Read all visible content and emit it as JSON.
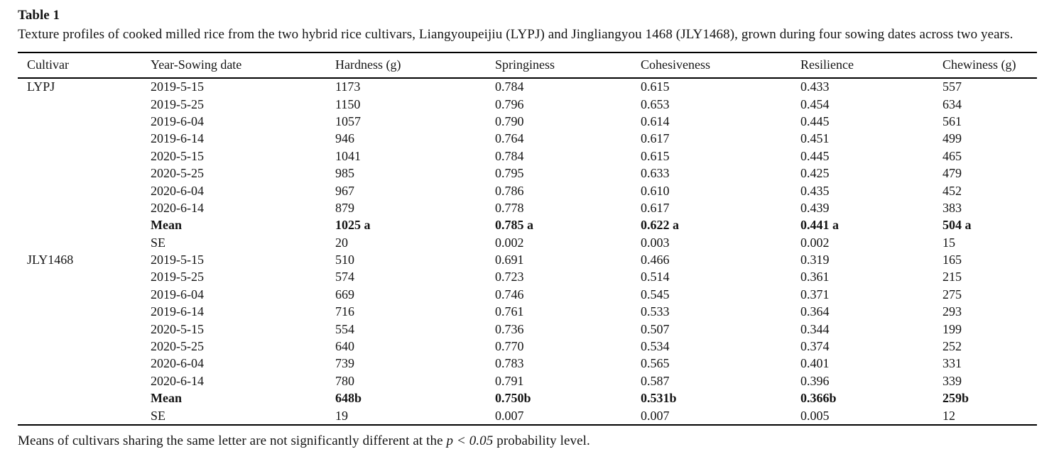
{
  "header": {
    "label": "Table 1",
    "caption": "Texture profiles of cooked milled rice from the two hybrid rice cultivars, Liangyoupeijiu (LYPJ) and Jingliangyou 1468 (JLY1468), grown during four sowing dates across two years."
  },
  "columns": [
    "Cultivar",
    "Year-Sowing date",
    "Hardness (g)",
    "Springiness",
    "Cohesiveness",
    "Resilience",
    "Chewiness (g)"
  ],
  "groups": [
    {
      "cultivar": "LYPJ",
      "rows": [
        [
          "2019-5-15",
          "1173",
          "0.784",
          "0.615",
          "0.433",
          "557"
        ],
        [
          "2019-5-25",
          "1150",
          "0.796",
          "0.653",
          "0.454",
          "634"
        ],
        [
          "2019-6-04",
          "1057",
          "0.790",
          "0.614",
          "0.445",
          "561"
        ],
        [
          "2019-6-14",
          "946",
          "0.764",
          "0.617",
          "0.451",
          "499"
        ],
        [
          "2020-5-15",
          "1041",
          "0.784",
          "0.615",
          "0.445",
          "465"
        ],
        [
          "2020-5-25",
          "985",
          "0.795",
          "0.633",
          "0.425",
          "479"
        ],
        [
          "2020-6-04",
          "967",
          "0.786",
          "0.610",
          "0.435",
          "452"
        ],
        [
          "2020-6-14",
          "879",
          "0.778",
          "0.617",
          "0.439",
          "383"
        ]
      ],
      "mean": [
        "Mean",
        "1025 a",
        "0.785 a",
        "0.622 a",
        "0.441 a",
        "504 a"
      ],
      "se": [
        "SE",
        "20",
        "0.002",
        "0.003",
        "0.002",
        "15"
      ]
    },
    {
      "cultivar": "JLY1468",
      "rows": [
        [
          "2019-5-15",
          "510",
          "0.691",
          "0.466",
          "0.319",
          "165"
        ],
        [
          "2019-5-25",
          "574",
          "0.723",
          "0.514",
          "0.361",
          "215"
        ],
        [
          "2019-6-04",
          "669",
          "0.746",
          "0.545",
          "0.371",
          "275"
        ],
        [
          "2019-6-14",
          "716",
          "0.761",
          "0.533",
          "0.364",
          "293"
        ],
        [
          "2020-5-15",
          "554",
          "0.736",
          "0.507",
          "0.344",
          "199"
        ],
        [
          "2020-5-25",
          "640",
          "0.770",
          "0.534",
          "0.374",
          "252"
        ],
        [
          "2020-6-04",
          "739",
          "0.783",
          "0.565",
          "0.401",
          "331"
        ],
        [
          "2020-6-14",
          "780",
          "0.791",
          "0.587",
          "0.396",
          "339"
        ]
      ],
      "mean": [
        "Mean",
        "648b",
        "0.750b",
        "0.531b",
        "0.366b",
        "259b"
      ],
      "se": [
        "SE",
        "19",
        "0.007",
        "0.007",
        "0.005",
        "12"
      ]
    }
  ],
  "footnote": {
    "text_before": "Means of cultivars sharing the same letter are not significantly different at the ",
    "italic": "p < 0.05",
    "text_after": " probability level."
  }
}
